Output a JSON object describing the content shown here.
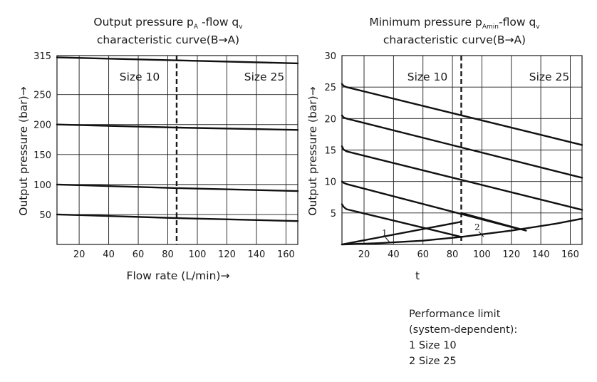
{
  "notes": {
    "heading": "Performance limit",
    "subheading": "(system-dependent):",
    "items": [
      "1 Size 10",
      "2 Size 25"
    ]
  },
  "chart_data": [
    {
      "type": "line",
      "title_line1_main": "Output pressure p",
      "title_line1_sub": "A",
      "title_line1_tail": " -flow q",
      "title_line1_sub2": "v",
      "title_line2": "characteristic curve(B→A)",
      "xlabel": "Flow rate (L/min)→",
      "ylabel": "Output pressure  (bar)→",
      "xlim": [
        5,
        168
      ],
      "ylim": [
        0,
        315
      ],
      "xticks": [
        20,
        40,
        60,
        80,
        100,
        120,
        140,
        160
      ],
      "yticks": [
        50,
        100,
        150,
        200,
        250,
        315
      ],
      "grid": true,
      "divider_x": 86,
      "regions": [
        "Size 10",
        "Size 25"
      ],
      "series": [
        {
          "x": [
            5,
            86,
            168
          ],
          "y": [
            312,
            307,
            302
          ]
        },
        {
          "x": [
            5,
            86,
            168
          ],
          "y": [
            200,
            195,
            191
          ]
        },
        {
          "x": [
            5,
            86,
            168
          ],
          "y": [
            100,
            94,
            89
          ]
        },
        {
          "x": [
            5,
            86,
            168
          ],
          "y": [
            50,
            44,
            39
          ]
        }
      ]
    },
    {
      "type": "line",
      "title_line1_main": "Minimum pressure p",
      "title_line1_sub": "Amin",
      "title_line1_tail": "-flow q",
      "title_line1_sub2": "v",
      "title_line2": "characteristic curve(B→A)",
      "xlabel": "t",
      "ylabel": "Output pressure  (bar)→",
      "xlim": [
        5,
        168
      ],
      "ylim": [
        0,
        30
      ],
      "xticks": [
        20,
        40,
        60,
        80,
        100,
        120,
        140,
        160
      ],
      "yticks": [
        5,
        10,
        15,
        20,
        25,
        30
      ],
      "grid": true,
      "divider_x": 86,
      "regions": [
        "Size 10",
        "Size 25"
      ],
      "series": [
        {
          "x": [
            5,
            6,
            8,
            168
          ],
          "y": [
            25.5,
            25.2,
            25.0,
            15.8
          ]
        },
        {
          "x": [
            5,
            6,
            8,
            168
          ],
          "y": [
            20.5,
            20.2,
            20.0,
            10.6
          ]
        },
        {
          "x": [
            5,
            6,
            8,
            168
          ],
          "y": [
            15.6,
            15.1,
            14.8,
            5.5
          ]
        },
        {
          "x": [
            5,
            6,
            8,
            126
          ],
          "y": [
            10.0,
            9.8,
            9.6,
            2.4
          ]
        },
        {
          "x": [
            5,
            6,
            8,
            86
          ],
          "y": [
            6.4,
            6.0,
            5.6,
            1.2
          ]
        },
        {
          "x": [
            5,
            86
          ],
          "y": [
            0.0,
            3.6
          ]
        },
        {
          "x": [
            5,
            30,
            60,
            86,
            120,
            150,
            168
          ],
          "y": [
            0.0,
            0.2,
            0.6,
            1.2,
            2.2,
            3.3,
            4.1
          ]
        },
        {
          "x": [
            86,
            130
          ],
          "y": [
            5.0,
            2.2
          ]
        }
      ],
      "annotations": [
        "1",
        "2"
      ]
    }
  ]
}
